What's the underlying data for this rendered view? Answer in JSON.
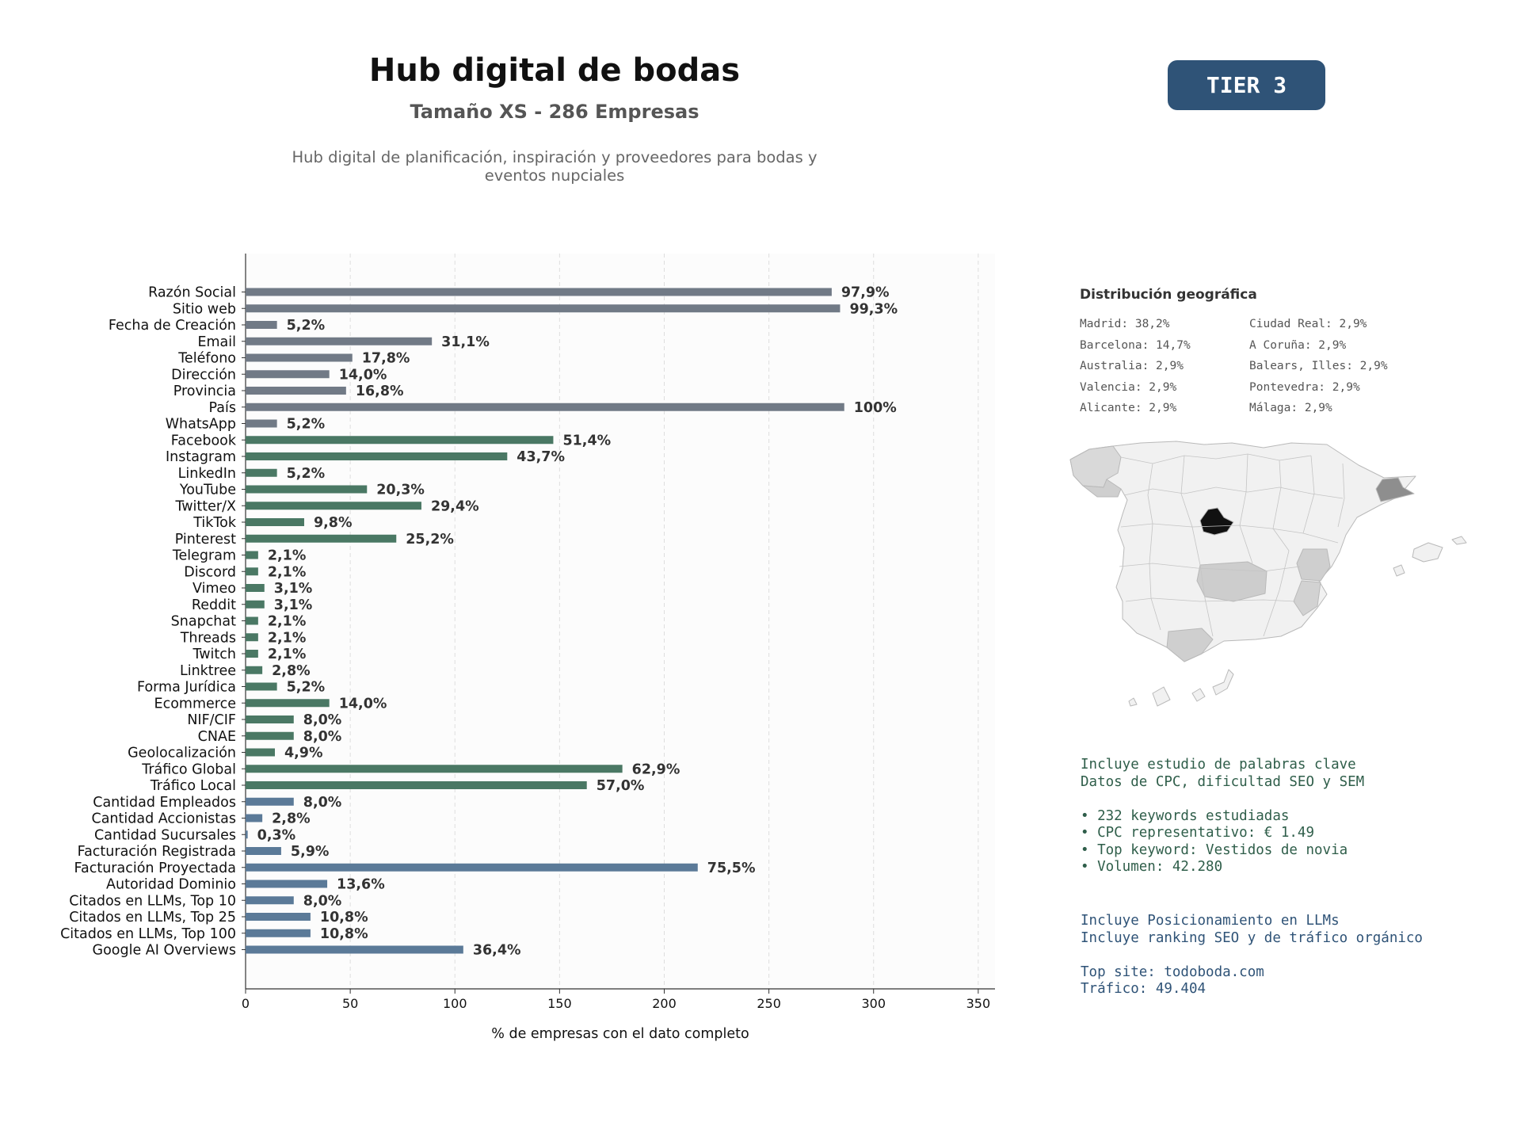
{
  "header": {
    "title": "Hub digital de bodas",
    "subtitle": "Tamaño XS - 286 Empresas",
    "description": "Hub digital de planificación, inspiración y proveedores para bodas y eventos nupciales",
    "tier": "TIER 3"
  },
  "colors": {
    "gray": "#717a86",
    "green": "#4a7864",
    "blue": "#5b7a98",
    "badge": "#2f5377"
  },
  "chart_data": {
    "type": "bar",
    "orientation": "horizontal",
    "xlabel": "% de empresas con el dato completo",
    "xlim": [
      0,
      358
    ],
    "xticks": [
      0,
      50,
      100,
      150,
      200,
      250,
      300,
      350
    ],
    "grid": "vertical dashed",
    "categories": [
      "Razón Social",
      "Sitio web",
      "Fecha de Creación",
      "Email",
      "Teléfono",
      "Dirección",
      "Provincia",
      "País",
      "WhatsApp",
      "Facebook",
      "Instagram",
      "LinkedIn",
      "YouTube",
      "Twitter/X",
      "TikTok",
      "Pinterest",
      "Telegram",
      "Discord",
      "Vimeo",
      "Reddit",
      "Snapchat",
      "Threads",
      "Twitch",
      "Linktree",
      "Forma Jurídica",
      "Ecommerce",
      "NIF/CIF",
      "CNAE",
      "Geolocalización",
      "Tráfico Global",
      "Tráfico Local",
      "Cantidad Empleados",
      "Cantidad Accionistas",
      "Cantidad Sucursales",
      "Facturación Registrada",
      "Facturación Proyectada",
      "Autoridad Dominio",
      "Citados en LLMs, Top 10",
      "Citados en LLMs, Top 25",
      "Citados en LLMs, Top 100",
      "Google AI Overviews"
    ],
    "values": [
      280,
      284,
      15,
      89,
      51,
      40,
      48,
      286,
      15,
      147,
      125,
      15,
      58,
      84,
      28,
      72,
      6,
      6,
      9,
      9,
      6,
      6,
      6,
      8,
      15,
      40,
      23,
      23,
      14,
      180,
      163,
      23,
      8,
      1,
      17,
      216,
      39,
      23,
      31,
      31,
      104
    ],
    "labels": [
      "97,9%",
      "99,3%",
      "5,2%",
      "31,1%",
      "17,8%",
      "14,0%",
      "16,8%",
      "100%",
      "5,2%",
      "51,4%",
      "43,7%",
      "5,2%",
      "20,3%",
      "29,4%",
      "9,8%",
      "25,2%",
      "2,1%",
      "2,1%",
      "3,1%",
      "3,1%",
      "2,1%",
      "2,1%",
      "2,1%",
      "2,8%",
      "5,2%",
      "14,0%",
      "8,0%",
      "8,0%",
      "4,9%",
      "62,9%",
      "57,0%",
      "8,0%",
      "2,8%",
      "0,3%",
      "5,9%",
      "75,5%",
      "13,6%",
      "8,0%",
      "10,8%",
      "10,8%",
      "36,4%"
    ],
    "groups": [
      "gray",
      "gray",
      "gray",
      "gray",
      "gray",
      "gray",
      "gray",
      "gray",
      "gray",
      "green",
      "green",
      "green",
      "green",
      "green",
      "green",
      "green",
      "green",
      "green",
      "green",
      "green",
      "green",
      "green",
      "green",
      "green",
      "green",
      "green",
      "green",
      "green",
      "green",
      "green",
      "green",
      "blue",
      "blue",
      "blue",
      "blue",
      "blue",
      "blue",
      "blue",
      "blue",
      "blue",
      "blue"
    ]
  },
  "geo": {
    "title": "Distribución geográfica",
    "items": [
      "Madrid: 38,2%",
      "Ciudad Real: 2,9%",
      "Barcelona: 14,7%",
      "A Coruña: 2,9%",
      "Australia: 2,9%",
      "Balears, Illes: 2,9%",
      "Valencia: 2,9%",
      "Pontevedra: 2,9%",
      "Alicante: 2,9%",
      "Málaga: 2,9%"
    ]
  },
  "info": {
    "seo_lines": "Incluye estudio de palabras clave\nDatos de CPC, dificultad SEO y SEM\n\n• 232 keywords estudiadas\n• CPC representativo: € 1.49\n• Top keyword: Vestidos de novia\n• Volumen: 42.280",
    "llm_lines": "Incluye Posicionamiento en LLMs\nIncluye ranking SEO y de tráfico orgánico\n\nTop site: todoboda.com\nTráfico: 49.404"
  }
}
